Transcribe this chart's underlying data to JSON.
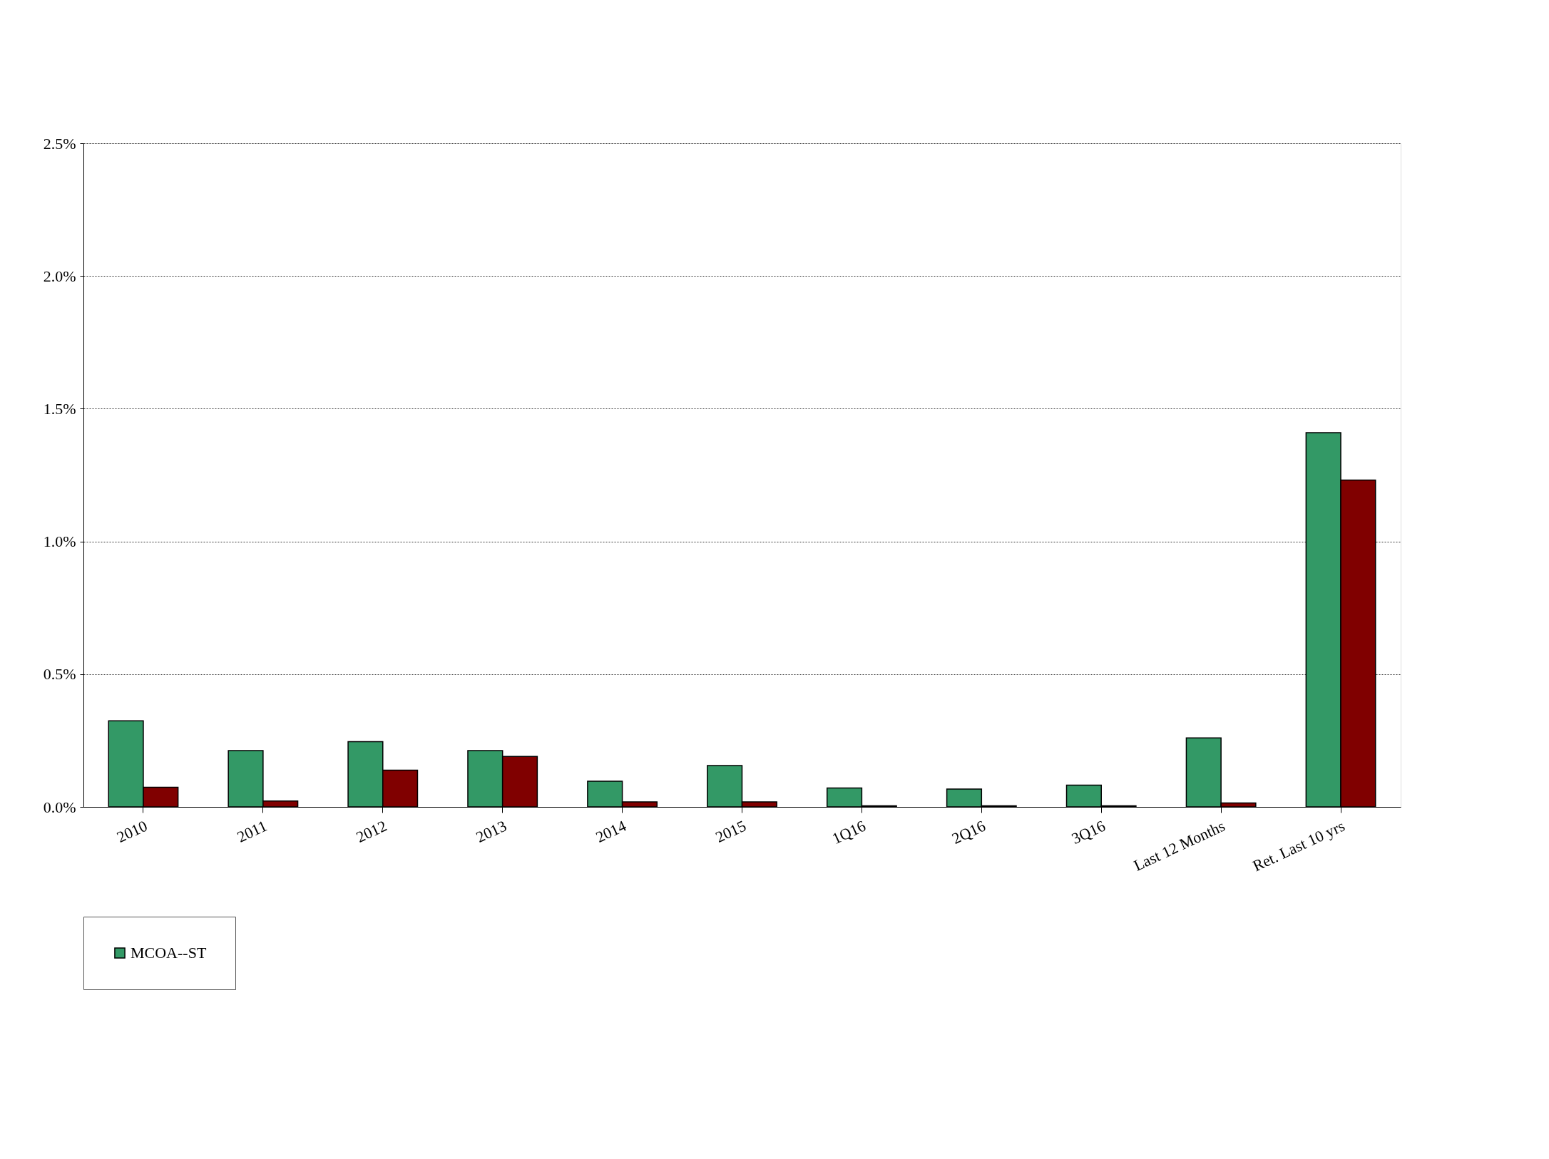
{
  "chart_data": {
    "type": "bar",
    "categories": [
      "2010",
      "2011",
      "2012",
      "2013",
      "2014",
      "2015",
      "1Q16",
      "2Q16",
      "3Q16",
      "Last 12 Months",
      "Ret. Last 10 yrs"
    ],
    "series": [
      {
        "name": "MCOA--ST",
        "color": "#339966",
        "values": [
          0.324,
          0.212,
          0.246,
          0.212,
          0.097,
          0.156,
          0.071,
          0.067,
          0.082,
          0.26,
          1.41
        ]
      },
      {
        "color": "#800000",
        "values": [
          0.074,
          0.022,
          0.138,
          0.19,
          0.019,
          0.019,
          0.004,
          0.004,
          0.004,
          0.015,
          1.231
        ]
      }
    ],
    "ylim": [
      0,
      2.5
    ],
    "yticks": [
      {
        "value": 0,
        "label": "0.0%"
      },
      {
        "value": 0.5,
        "label": "0.5%"
      },
      {
        "value": 1,
        "label": "1.0%"
      },
      {
        "value": 1.5,
        "label": "1.5%"
      },
      {
        "value": 2,
        "label": "2.0%"
      },
      {
        "value": 2.5,
        "label": "2.5%"
      }
    ],
    "grid": "y",
    "legend": "bottom"
  }
}
